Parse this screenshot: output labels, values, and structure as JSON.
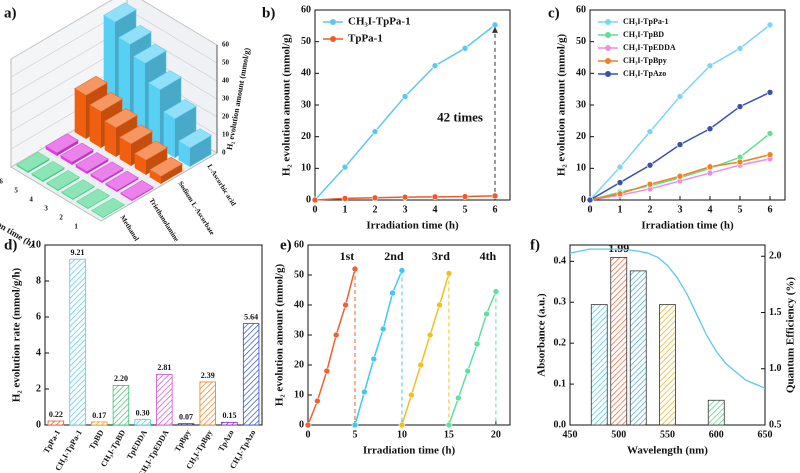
{
  "chart_data": [
    {
      "type": "bar3d",
      "label": "a)",
      "categories": [
        "1",
        "2",
        "3",
        "4",
        "5",
        "6"
      ],
      "xlabel": "Irradiation time (h)",
      "zlabel": "H₂ evolution amount (mmol/g)",
      "zlim": [
        0,
        60
      ],
      "zticks": [
        0,
        10,
        20,
        30,
        40,
        50,
        60
      ],
      "series": [
        {
          "name": "Methanol",
          "color": "#50d890",
          "values": [
            0.2,
            0.3,
            0.4,
            0.5,
            0.6,
            0.7
          ]
        },
        {
          "name": "Triethanolamine",
          "color": "#e040e0",
          "values": [
            0.5,
            0.7,
            0.9,
            1.1,
            1.3,
            1.5
          ]
        },
        {
          "name": "Sodium L-Ascorbate",
          "color": "#f06010",
          "values": [
            4,
            8,
            12,
            16,
            20,
            24
          ]
        },
        {
          "name": "L-Ascorbic acid",
          "color": "#58d0f4",
          "values": [
            10.4,
            21.6,
            32.7,
            42.4,
            47.9,
            55.3
          ]
        }
      ]
    },
    {
      "type": "line",
      "label": "b)",
      "x": [
        0,
        1,
        2,
        3,
        4,
        5,
        6
      ],
      "xlim": [
        0,
        6.5
      ],
      "ylim": [
        0,
        60
      ],
      "xticks": [
        0,
        1,
        2,
        3,
        4,
        5,
        6
      ],
      "yticks": [
        0,
        10,
        20,
        30,
        40,
        50,
        60
      ],
      "xlabel": "Irradiation time (h)",
      "ylabel": "H₂ evolution amount (mmol/g)",
      "legend": "upper left",
      "annotation": "42 times",
      "series": [
        {
          "name": "CH₃I-TpPa-1",
          "color": "#5ac8f0",
          "values": [
            0,
            10.4,
            21.6,
            32.7,
            42.4,
            47.9,
            55.3
          ]
        },
        {
          "name": "TpPa-1",
          "color": "#f05a28",
          "values": [
            0,
            0.5,
            0.7,
            0.9,
            1.0,
            1.1,
            1.3
          ]
        }
      ]
    },
    {
      "type": "line",
      "label": "c)",
      "x": [
        0,
        1,
        2,
        3,
        4,
        5,
        6
      ],
      "xlim": [
        0,
        6.5
      ],
      "ylim": [
        0,
        60
      ],
      "xticks": [
        0,
        1,
        2,
        3,
        4,
        5,
        6
      ],
      "yticks": [
        0,
        10,
        20,
        30,
        40,
        50,
        60
      ],
      "xlabel": "Irradiation time (h)",
      "ylabel": "H₂ evolution amount (mmol/g)",
      "legend": "upper left",
      "series": [
        {
          "name": "CH₃I-TpPa-1",
          "color": "#7ad4f4",
          "values": [
            0,
            10.4,
            21.6,
            32.7,
            42.4,
            47.9,
            55.3
          ]
        },
        {
          "name": "CH₃I-TpBD",
          "color": "#60e090",
          "values": [
            0,
            2.5,
            4.5,
            7,
            10,
            13.5,
            21
          ]
        },
        {
          "name": "CH₃I-TpEDDA",
          "color": "#e890e8",
          "values": [
            0,
            1.5,
            3.5,
            6,
            8.5,
            11,
            13
          ]
        },
        {
          "name": "CH₃I-TpBpy",
          "color": "#f08020",
          "values": [
            0,
            2,
            5,
            7.5,
            10.5,
            12,
            14.3
          ]
        },
        {
          "name": "CH₃I-TpAzo",
          "color": "#3a50b0",
          "values": [
            0,
            5.5,
            11,
            17.5,
            22.5,
            29.5,
            34
          ]
        }
      ]
    },
    {
      "type": "bar",
      "label": "d)",
      "ylabel": "H₂ evolution rate (mmol/g/h)",
      "ylim": [
        0,
        10
      ],
      "yticks": [
        0,
        2,
        4,
        6,
        8,
        10
      ],
      "categories": [
        "TpPa-1",
        "CH₃I-TpPa-1",
        "TpBD",
        "CH₃I-TpBD",
        "TpEDDA",
        "CH₃I-TpEDDA",
        "TpBpy",
        "CH₃I-TpBpy",
        "TpAzo",
        "CH₃I-TpAzo"
      ],
      "values": [
        0.22,
        9.21,
        0.17,
        2.2,
        0.3,
        2.81,
        0.07,
        2.39,
        0.15,
        5.64
      ],
      "value_labels": [
        "0.22",
        "9.21",
        "0.17",
        "2.20",
        "0.30",
        "2.81",
        "0.07",
        "2.39",
        "0.15",
        "5.64"
      ],
      "colors": [
        "#f05a28",
        "#4ec8e8",
        "#e8a020",
        "#40c070",
        "#40d0e0",
        "#d050d0",
        "#202080",
        "#e88020",
        "#8020c0",
        "#3050c0"
      ]
    },
    {
      "type": "line",
      "label": "e)",
      "xlim": [
        0,
        21.5
      ],
      "ylim": [
        0,
        60
      ],
      "xticks": [
        0,
        5,
        10,
        15,
        20
      ],
      "yticks": [
        0,
        10,
        20,
        30,
        40,
        50,
        60
      ],
      "xlabel": "Irradiation time (h)",
      "ylabel": "H₂ evolution amount (mmol/g)",
      "series": [
        {
          "name": "1st",
          "color": "#f06030",
          "x": [
            0,
            1,
            2,
            3,
            4,
            5
          ],
          "values": [
            0,
            8,
            18,
            30,
            40,
            52
          ]
        },
        {
          "name": "2nd",
          "color": "#40c8f0",
          "x": [
            5,
            6,
            7,
            8,
            9,
            10
          ],
          "values": [
            0,
            11,
            22,
            32,
            44,
            51.5
          ]
        },
        {
          "name": "3rd",
          "color": "#f0c020",
          "x": [
            10,
            11,
            12,
            13,
            14,
            15
          ],
          "values": [
            0,
            10,
            20,
            30,
            40,
            50.5
          ]
        },
        {
          "name": "4th",
          "color": "#60e0a0",
          "x": [
            15,
            16,
            17,
            18,
            19,
            20
          ],
          "values": [
            0,
            9,
            18,
            27,
            37,
            44.5
          ]
        }
      ]
    },
    {
      "type": "combo",
      "label": "f)",
      "xlabel": "Wavelength (nm)",
      "ylabel": "Absorbance (a.u.)",
      "y2label": "Quantum Efficiency (%)",
      "ylabel_color": "#40c0e0",
      "y2label_color": "#f06030",
      "xlim": [
        450,
        650
      ],
      "xticks": [
        450,
        500,
        550,
        600,
        650
      ],
      "ylim": [
        0,
        0.44
      ],
      "yticks": [
        {
          "value": 0,
          "label": "0.0"
        },
        0.1,
        0.2,
        0.3,
        0.4
      ],
      "y2lim": [
        0.5,
        2.1
      ],
      "y2ticks": [
        0.5,
        {
          "value": 1,
          "label": "1.0"
        },
        1.5,
        {
          "value": 2,
          "label": "2.0"
        }
      ],
      "line": {
        "color": "#5ac8e8",
        "x": [
          450,
          460,
          470,
          480,
          490,
          500,
          510,
          520,
          530,
          540,
          550,
          560,
          570,
          580,
          590,
          600,
          610,
          620,
          630,
          640,
          650
        ],
        "values": [
          0.42,
          0.425,
          0.43,
          0.43,
          0.43,
          0.43,
          0.428,
          0.425,
          0.42,
          0.41,
          0.39,
          0.36,
          0.32,
          0.27,
          0.22,
          0.18,
          0.15,
          0.13,
          0.11,
          0.1,
          0.09
        ]
      },
      "bars": {
        "axis": "y2",
        "x": [
          480,
          500,
          520,
          550,
          600
        ],
        "values": [
          1.57,
          1.99,
          1.87,
          1.57,
          0.72
        ],
        "value_labels": [
          null,
          "1.99",
          null,
          null,
          null
        ],
        "colors": [
          "#40c8e0",
          "#f06030",
          "#40a8d0",
          "#e0b020",
          "#40d080"
        ]
      }
    }
  ]
}
